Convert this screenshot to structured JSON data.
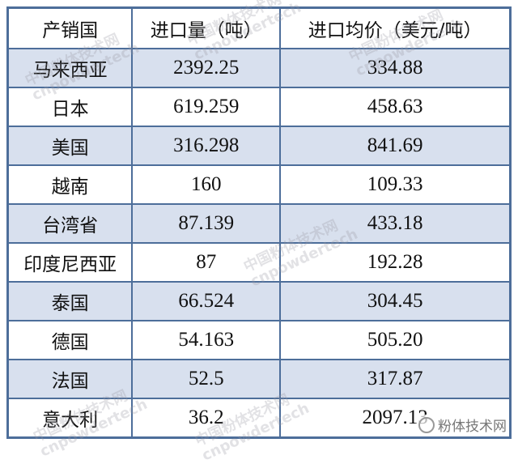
{
  "table": {
    "headers": [
      "产销国",
      "进口量（吨）",
      "进口均价（美元/吨）"
    ],
    "rows": [
      [
        "马来西亚",
        "2392.25",
        "334.88"
      ],
      [
        "日本",
        "619.259",
        "458.63"
      ],
      [
        "美国",
        "316.298",
        "841.69"
      ],
      [
        "越南",
        "160",
        "109.33"
      ],
      [
        "台湾省",
        "87.139",
        "433.18"
      ],
      [
        "印度尼西亚",
        "87",
        "192.28"
      ],
      [
        "泰国",
        "66.524",
        "304.45"
      ],
      [
        "德国",
        "54.163",
        "505.20"
      ],
      [
        "法国",
        "52.5",
        "317.87"
      ],
      [
        "意大利",
        "36.2",
        "2097.13"
      ]
    ]
  },
  "watermark": {
    "cn": "中国粉体技术网",
    "en": "cnpowdertech"
  },
  "logo": "粉体技术网",
  "colors": {
    "border": "#4d6e9a",
    "alt_row": "#d8e0ee"
  }
}
